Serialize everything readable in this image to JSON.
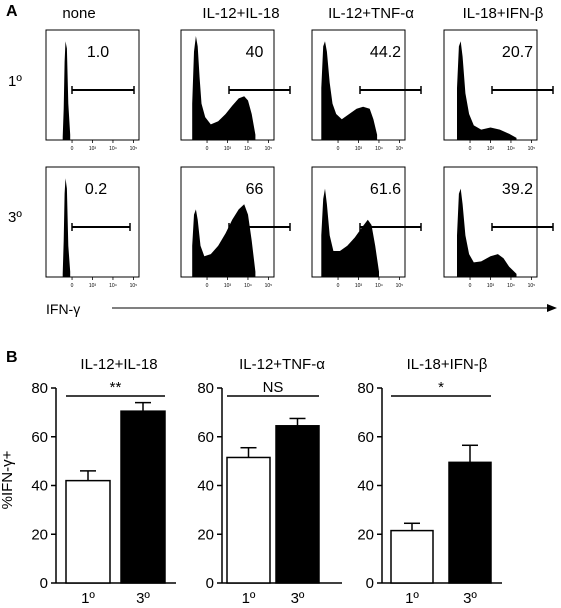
{
  "panel_a": {
    "letter": "A",
    "conditions": [
      "none",
      "IL-12+IL-18",
      "IL-12+TNF-α",
      "IL-18+IFN-β"
    ],
    "rows": [
      "1º",
      "3º"
    ],
    "x_axis_label": "IFN-γ",
    "tick_labels": [
      "0",
      "10³",
      "10⁴",
      "10⁵"
    ],
    "gate_percent": [
      [
        "1.0",
        "40",
        "44.2",
        "20.7"
      ],
      [
        "0.2",
        "66",
        "61.6",
        "39.2"
      ]
    ]
  },
  "panel_b": {
    "letter": "B",
    "ylabel": "%IFN-γ+"
  },
  "chart_data": [
    {
      "type": "bar",
      "title": "IL-12+IL-18",
      "categories": [
        "1º",
        "3º"
      ],
      "values": [
        42,
        70.5
      ],
      "errors": [
        4,
        3.5
      ],
      "ylabel": "%IFN-γ+",
      "ylim": [
        0,
        80
      ],
      "yticks": [
        "0",
        "20",
        "40",
        "60",
        "80"
      ],
      "significance": "**",
      "bar_colors": [
        "#ffffff",
        "#000000"
      ]
    },
    {
      "type": "bar",
      "title": "IL-12+TNF-α",
      "categories": [
        "1º",
        "3º"
      ],
      "values": [
        51.5,
        64.5
      ],
      "errors": [
        4,
        3
      ],
      "ylim": [
        0,
        80
      ],
      "yticks": [
        "0",
        "20",
        "40",
        "60",
        "80"
      ],
      "significance": "NS",
      "bar_colors": [
        "#ffffff",
        "#000000"
      ]
    },
    {
      "type": "bar",
      "title": "IL-18+IFN-β",
      "categories": [
        "1º",
        "3º"
      ],
      "values": [
        21.5,
        49.5
      ],
      "errors": [
        3,
        7
      ],
      "ylim": [
        0,
        80
      ],
      "yticks": [
        "0",
        "20",
        "40",
        "60",
        "80"
      ],
      "significance": "*",
      "bar_colors": [
        "#ffffff",
        "#000000"
      ]
    }
  ]
}
